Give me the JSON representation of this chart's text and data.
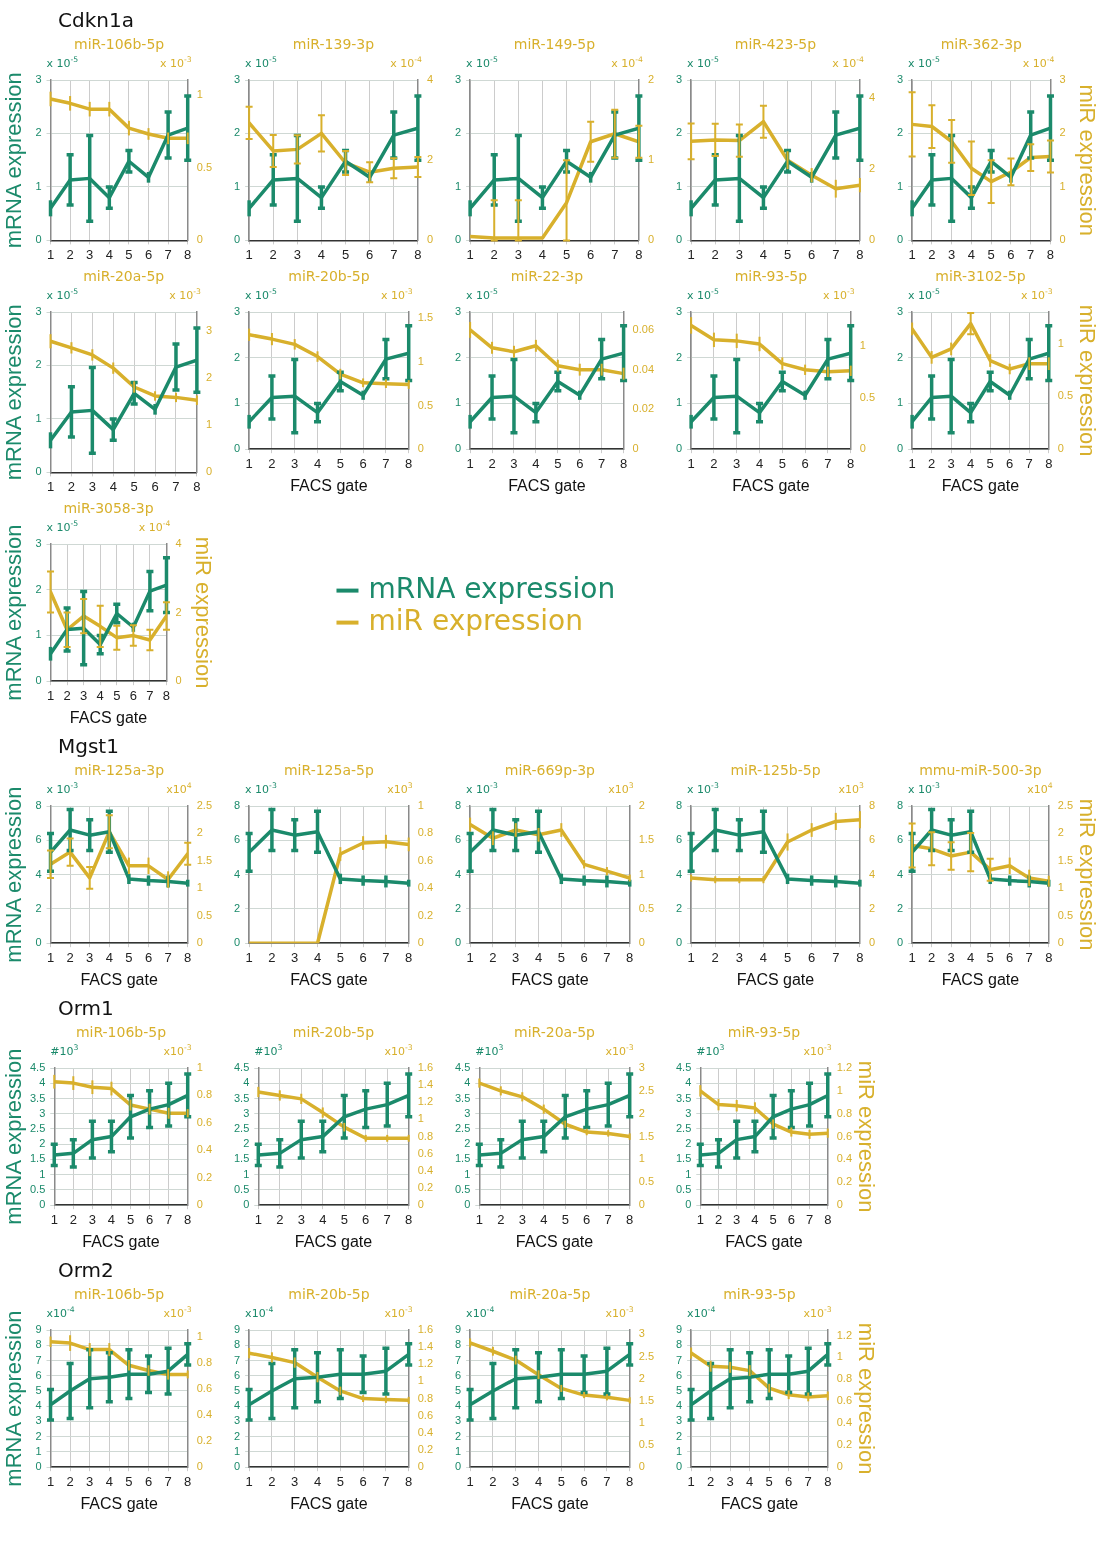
{
  "chart_data": [
    {
      "type": "other",
      "title": "Cdkn1a"
    },
    {
      "type": "line",
      "title": "miR-106b-5p",
      "ylabel": "mRNA expression",
      "annotations": [
        "x 10$^{-5}$",
        "x 10$^{-3}$"
      ],
      "x": [
        1,
        2,
        3,
        4,
        5,
        6,
        7,
        8
      ],
      "xlim": [
        1,
        8
      ],
      "xticks": [
        1,
        2,
        3,
        4,
        5,
        6,
        7,
        8
      ],
      "ylim": [
        0,
        3
      ],
      "yticks": [
        0,
        1,
        2,
        3
      ],
      "y2lim": [
        0,
        1.1
      ],
      "y2ticks": [
        0,
        0.5,
        1
      ],
      "grid": true,
      "series": [
        {
          "color": "#1b8a6b",
          "values": [
            0.6,
            1.13,
            1.16,
            0.8,
            1.48,
            1.18,
            1.97,
            2.1
          ],
          "errors": [
            0.15,
            0.47,
            0.8,
            0.2,
            0.2,
            0.1,
            0.43,
            0.6
          ]
        },
        {
          "color": "#d8b02c",
          "axis": "y2",
          "values": [
            0.97,
            0.94,
            0.9,
            0.9,
            0.77,
            0.73,
            0.7,
            0.7
          ],
          "errors": [
            0.05,
            0.05,
            0.05,
            0.05,
            0.05,
            0.04,
            0.04,
            0.04
          ]
        }
      ]
    },
    {
      "type": "line",
      "title": "miR-139-3p",
      "annotations": [
        "x 10$^{-5}$",
        "x 10$^{-4}$"
      ],
      "x": [
        1,
        2,
        3,
        4,
        5,
        6,
        7,
        8
      ],
      "xlim": [
        1,
        8
      ],
      "xticks": [
        1,
        2,
        3,
        4,
        5,
        6,
        7,
        8
      ],
      "ylim": [
        0,
        3
      ],
      "yticks": [
        0,
        1,
        2,
        3
      ],
      "y2lim": [
        0,
        4
      ],
      "y2ticks": [
        0,
        2,
        4
      ],
      "grid": true,
      "series": [
        {
          "color": "#1b8a6b",
          "values": [
            0.6,
            1.13,
            1.16,
            0.8,
            1.48,
            1.18,
            1.97,
            2.1
          ],
          "errors": [
            0.15,
            0.47,
            0.8,
            0.2,
            0.2,
            0.1,
            0.43,
            0.6
          ]
        },
        {
          "color": "#d8b02c",
          "axis": "y2",
          "values": [
            2.93,
            2.23,
            2.27,
            2.67,
            1.93,
            1.7,
            1.8,
            1.83
          ],
          "errors": [
            0.4,
            0.4,
            0.35,
            0.45,
            0.3,
            0.25,
            0.25,
            0.25
          ]
        }
      ]
    },
    {
      "type": "line",
      "title": "miR-149-5p",
      "annotations": [
        "x 10$^{-5}$",
        "x 10$^{-4}$"
      ],
      "x": [
        1,
        2,
        3,
        4,
        5,
        6,
        7,
        8
      ],
      "xlim": [
        1,
        8
      ],
      "xticks": [
        1,
        2,
        3,
        4,
        5,
        6,
        7,
        8
      ],
      "ylim": [
        0,
        3
      ],
      "yticks": [
        0,
        1,
        2,
        3
      ],
      "y2lim": [
        0,
        2
      ],
      "y2ticks": [
        0,
        1,
        2
      ],
      "grid": true,
      "series": [
        {
          "color": "#1b8a6b",
          "values": [
            0.6,
            1.13,
            1.16,
            0.8,
            1.48,
            1.18,
            1.97,
            2.1
          ],
          "errors": [
            0.15,
            0.47,
            0.8,
            0.2,
            0.2,
            0.1,
            0.43,
            0.6
          ]
        },
        {
          "color": "#d8b02c",
          "axis": "y2",
          "values": [
            0.05,
            0.03,
            0.03,
            0.03,
            0.47,
            1.23,
            1.33,
            1.23
          ],
          "errors": [
            null,
            [
              0,
              0.5
            ],
            [
              0,
              0.5
            ],
            null,
            [
              0,
              1.0
            ],
            0.25,
            0.3,
            0.2
          ]
        }
      ]
    },
    {
      "type": "line",
      "title": "miR-423-5p",
      "annotations": [
        "x 10$^{-5}$",
        "x 10$^{-4}$"
      ],
      "x": [
        1,
        2,
        3,
        4,
        5,
        6,
        7,
        8
      ],
      "xlim": [
        1,
        8
      ],
      "xticks": [
        1,
        2,
        3,
        4,
        5,
        6,
        7,
        8
      ],
      "ylim": [
        0,
        3
      ],
      "yticks": [
        0,
        1,
        2,
        3
      ],
      "y2lim": [
        0,
        4.5
      ],
      "y2ticks": [
        0,
        2,
        4
      ],
      "grid": true,
      "series": [
        {
          "color": "#1b8a6b",
          "values": [
            0.6,
            1.13,
            1.16,
            0.8,
            1.48,
            1.18,
            1.97,
            2.1
          ],
          "errors": [
            0.15,
            0.47,
            0.8,
            0.2,
            0.2,
            0.1,
            0.43,
            0.6
          ]
        },
        {
          "color": "#d8b02c",
          "axis": "y2",
          "values": [
            2.78,
            2.82,
            2.8,
            3.33,
            2.25,
            1.83,
            1.45,
            1.55
          ],
          "errors": [
            0.5,
            0.45,
            0.45,
            0.45,
            0.25,
            0.2,
            0.25,
            0.2
          ]
        }
      ]
    },
    {
      "type": "line",
      "title": "miR-362-3p",
      "y2label": "miR expression",
      "annotations": [
        "x 10$^{-5}$",
        "x 10$^{-4}$"
      ],
      "x": [
        1,
        2,
        3,
        4,
        5,
        6,
        7,
        8
      ],
      "xlim": [
        1,
        8
      ],
      "xticks": [
        1,
        2,
        3,
        4,
        5,
        6,
        7,
        8
      ],
      "ylim": [
        0,
        3
      ],
      "yticks": [
        0,
        1,
        2,
        3
      ],
      "y2lim": [
        0,
        3
      ],
      "y2ticks": [
        0,
        1,
        2,
        3
      ],
      "grid": true,
      "series": [
        {
          "color": "#1b8a6b",
          "values": [
            0.6,
            1.13,
            1.16,
            0.8,
            1.48,
            1.18,
            1.97,
            2.1
          ],
          "errors": [
            0.15,
            0.47,
            0.8,
            0.2,
            0.2,
            0.1,
            0.43,
            0.6
          ]
        },
        {
          "color": "#d8b02c",
          "axis": "y2",
          "values": [
            2.17,
            2.13,
            1.85,
            1.35,
            1.1,
            1.28,
            1.55,
            1.57
          ],
          "errors": [
            0.6,
            0.4,
            0.4,
            0.5,
            0.4,
            0.25,
            0.25,
            0.3
          ]
        }
      ]
    },
    {
      "type": "line",
      "title": "miR-20a-5p",
      "ylabel": "mRNA expression",
      "annotations": [
        "x 10$^{-5}$",
        "x 10$^{-3}$"
      ],
      "x": [
        1,
        2,
        3,
        4,
        5,
        6,
        7,
        8
      ],
      "xlim": [
        1,
        8
      ],
      "xticks": [
        1,
        2,
        3,
        4,
        5,
        6,
        7,
        8
      ],
      "ylim": [
        0,
        3
      ],
      "yticks": [
        0,
        1,
        2,
        3
      ],
      "y2lim": [
        0,
        3.4
      ],
      "y2ticks": [
        0,
        1,
        2,
        3
      ],
      "grid": true,
      "series": [
        {
          "color": "#1b8a6b",
          "values": [
            0.6,
            1.13,
            1.16,
            0.8,
            1.48,
            1.18,
            1.97,
            2.1
          ],
          "errors": [
            0.15,
            0.47,
            0.8,
            0.2,
            0.2,
            0.1,
            0.43,
            0.6
          ]
        },
        {
          "color": "#d8b02c",
          "axis": "y2",
          "values": [
            2.78,
            2.64,
            2.49,
            2.21,
            1.81,
            1.62,
            1.59,
            1.53
          ],
          "errors": [
            0.15,
            0.12,
            0.12,
            0.12,
            0.12,
            0.1,
            0.1,
            0.1
          ]
        }
      ]
    },
    {
      "type": "line",
      "title": "miR-20b-5p",
      "xlabel": "FACS gate",
      "annotations": [
        "x 10$^{-5}$",
        "x 10$^{-3}$"
      ],
      "x": [
        1,
        2,
        3,
        4,
        5,
        6,
        7,
        8
      ],
      "xlim": [
        1,
        8
      ],
      "xticks": [
        1,
        2,
        3,
        4,
        5,
        6,
        7,
        8
      ],
      "ylim": [
        0,
        3
      ],
      "yticks": [
        0,
        1,
        2,
        3
      ],
      "y2lim": [
        0,
        1.57
      ],
      "y2ticks": [
        0,
        0.5,
        1,
        1.5
      ],
      "grid": true,
      "series": [
        {
          "color": "#1b8a6b",
          "values": [
            0.6,
            1.13,
            1.16,
            0.8,
            1.48,
            1.18,
            1.97,
            2.1
          ],
          "errors": [
            0.15,
            0.47,
            0.8,
            0.2,
            0.2,
            0.1,
            0.43,
            0.6
          ]
        },
        {
          "color": "#d8b02c",
          "axis": "y2",
          "values": [
            1.31,
            1.26,
            1.2,
            1.06,
            0.86,
            0.76,
            0.75,
            0.74
          ],
          "errors": [
            0.07,
            0.07,
            0.06,
            0.06,
            0.06,
            0.05,
            0.05,
            0.05
          ]
        }
      ]
    },
    {
      "type": "line",
      "title": "miR-22-3p",
      "xlabel": "FACS gate",
      "annotations": [
        "x 10$^{-5}$"
      ],
      "x": [
        1,
        2,
        3,
        4,
        5,
        6,
        7,
        8
      ],
      "xlim": [
        1,
        8
      ],
      "xticks": [
        1,
        2,
        3,
        4,
        5,
        6,
        7,
        8
      ],
      "ylim": [
        0,
        3
      ],
      "yticks": [
        0,
        1,
        2,
        3
      ],
      "y2lim": [
        0,
        0.069
      ],
      "y2ticks": [
        0,
        0.02,
        0.04,
        0.06
      ],
      "grid": true,
      "series": [
        {
          "color": "#1b8a6b",
          "values": [
            0.6,
            1.13,
            1.16,
            0.8,
            1.48,
            1.18,
            1.97,
            2.1
          ],
          "errors": [
            0.15,
            0.47,
            0.8,
            0.2,
            0.2,
            0.1,
            0.43,
            0.6
          ]
        },
        {
          "color": "#d8b02c",
          "axis": "y2",
          "values": [
            0.06,
            0.051,
            0.049,
            0.052,
            0.042,
            0.04,
            0.04,
            0.038
          ],
          "errors": [
            0.004,
            0.003,
            0.003,
            0.003,
            0.003,
            0.003,
            0.003,
            0.003
          ]
        }
      ]
    },
    {
      "type": "line",
      "title": "miR-93-5p",
      "xlabel": "FACS gate",
      "annotations": [
        "x 10$^{-5}$",
        "x 10$^{-3}$"
      ],
      "x": [
        1,
        2,
        3,
        4,
        5,
        6,
        7,
        8
      ],
      "xlim": [
        1,
        8
      ],
      "xticks": [
        1,
        2,
        3,
        4,
        5,
        6,
        7,
        8
      ],
      "ylim": [
        0,
        3
      ],
      "yticks": [
        0,
        1,
        2,
        3
      ],
      "y2lim": [
        0,
        1.33
      ],
      "y2ticks": [
        0,
        0.5,
        1
      ],
      "grid": true,
      "series": [
        {
          "color": "#1b8a6b",
          "values": [
            0.6,
            1.13,
            1.16,
            0.8,
            1.48,
            1.18,
            1.97,
            2.1
          ],
          "errors": [
            0.15,
            0.47,
            0.8,
            0.2,
            0.2,
            0.1,
            0.43,
            0.6
          ]
        },
        {
          "color": "#d8b02c",
          "axis": "y2",
          "values": [
            1.2,
            1.06,
            1.05,
            1.02,
            0.83,
            0.77,
            0.75,
            0.76
          ],
          "errors": [
            0.08,
            0.07,
            0.07,
            0.07,
            0.06,
            0.05,
            0.05,
            0.05
          ]
        }
      ]
    },
    {
      "type": "line",
      "title": "miR-3102-5p",
      "xlabel": "FACS gate",
      "y2label": "miR expression",
      "annotations": [
        "x 10$^{-5}$",
        "x 10$^{-3}$"
      ],
      "x": [
        1,
        2,
        3,
        4,
        5,
        6,
        7,
        8
      ],
      "xlim": [
        1,
        8
      ],
      "xticks": [
        1,
        2,
        3,
        4,
        5,
        6,
        7,
        8
      ],
      "ylim": [
        0,
        3
      ],
      "yticks": [
        0,
        1,
        2,
        3
      ],
      "y2lim": [
        0,
        1.3
      ],
      "y2ticks": [
        0,
        0.5,
        1
      ],
      "grid": true,
      "series": [
        {
          "color": "#1b8a6b",
          "values": [
            0.6,
            1.13,
            1.16,
            0.8,
            1.48,
            1.18,
            1.97,
            2.1
          ],
          "errors": [
            0.15,
            0.47,
            0.8,
            0.2,
            0.2,
            0.1,
            0.43,
            0.6
          ]
        },
        {
          "color": "#d8b02c",
          "axis": "y2",
          "values": [
            1.14,
            0.87,
            0.95,
            1.19,
            0.84,
            0.76,
            0.81,
            0.81
          ],
          "errors": [
            0.06,
            0.06,
            0.06,
            0.1,
            0.06,
            0.05,
            0.06,
            0.06
          ]
        }
      ]
    },
    {
      "type": "line",
      "title": "miR-3058-3p",
      "xlabel": "FACS gate",
      "ylabel": "mRNA expression",
      "y2label": "miR expression",
      "legend": "right",
      "annotations": [
        "x 10$^{-5}$",
        "x 10$^{-4}$"
      ],
      "x": [
        1,
        2,
        3,
        4,
        5,
        6,
        7,
        8
      ],
      "xlim": [
        1,
        8
      ],
      "xticks": [
        1,
        2,
        3,
        4,
        5,
        6,
        7,
        8
      ],
      "ylim": [
        0,
        3
      ],
      "yticks": [
        0,
        1,
        2,
        3
      ],
      "y2lim": [
        0,
        4
      ],
      "y2ticks": [
        0,
        2,
        4
      ],
      "grid": true,
      "series": [
        {
          "name": "mRNA expression",
          "color": "#1b8a6b",
          "values": [
            0.6,
            1.13,
            1.16,
            0.8,
            1.48,
            1.18,
            1.97,
            2.1
          ],
          "errors": [
            0.15,
            0.47,
            0.8,
            0.2,
            0.2,
            0.1,
            0.43,
            0.6
          ]
        },
        {
          "name": "miR expression",
          "color": "#d8b02c",
          "axis": "y2",
          "values": [
            2.6,
            1.5,
            1.9,
            1.6,
            1.27,
            1.33,
            1.2,
            1.9
          ],
          "errors": [
            0.6,
            0.5,
            0.5,
            0.6,
            0.35,
            0.3,
            0.3,
            0.4
          ]
        }
      ]
    },
    {
      "type": "other",
      "title": "Mgst1"
    },
    {
      "type": "line",
      "title": "miR-125a-3p",
      "xlabel": "FACS gate",
      "ylabel": "mRNA expression",
      "annotations": [
        "x 10$^{-3}$",
        "x10$^{4}$"
      ],
      "x": [
        1,
        2,
        3,
        4,
        5,
        6,
        7,
        8
      ],
      "xlim": [
        1,
        8
      ],
      "xticks": [
        1,
        2,
        3,
        4,
        5,
        6,
        7,
        8
      ],
      "ylim": [
        0,
        8
      ],
      "yticks": [
        0,
        2,
        4,
        6,
        8
      ],
      "y2lim": [
        0,
        2.5
      ],
      "y2ticks": [
        0,
        0.5,
        1,
        1.5,
        2,
        2.5
      ],
      "grid": true,
      "series": [
        {
          "color": "#1b8a6b",
          "values": [
            5.3,
            6.6,
            6.3,
            6.5,
            3.75,
            3.65,
            3.6,
            3.5
          ],
          "errors": [
            1.1,
            1.2,
            0.9,
            1.2,
            0.3,
            0.3,
            0.35,
            0.2
          ]
        },
        {
          "color": "#d8b02c",
          "axis": "y2",
          "values": [
            1.44,
            1.66,
            1.19,
            2.03,
            1.41,
            1.41,
            1.16,
            1.63
          ],
          "errors": [
            0.25,
            0.25,
            0.2,
            0.3,
            0.15,
            0.15,
            0.15,
            0.2
          ]
        }
      ]
    },
    {
      "type": "line",
      "title": "miR-125a-5p",
      "xlabel": "FACS gate",
      "annotations": [
        "x 10$^{-3}$",
        "x10$^{3}$"
      ],
      "x": [
        1,
        2,
        3,
        4,
        5,
        6,
        7,
        8
      ],
      "xlim": [
        1,
        8
      ],
      "xticks": [
        1,
        2,
        3,
        4,
        5,
        6,
        7,
        8
      ],
      "ylim": [
        0,
        8
      ],
      "yticks": [
        0,
        2,
        4,
        6,
        8
      ],
      "y2lim": [
        0,
        1
      ],
      "y2ticks": [
        0,
        0.2,
        0.4,
        0.6,
        0.8,
        1
      ],
      "grid": true,
      "series": [
        {
          "color": "#1b8a6b",
          "values": [
            5.3,
            6.6,
            6.3,
            6.5,
            3.75,
            3.65,
            3.6,
            3.5
          ],
          "errors": [
            1.1,
            1.2,
            0.9,
            1.2,
            0.3,
            0.3,
            0.35,
            0.2
          ]
        },
        {
          "color": "#d8b02c",
          "axis": "y2",
          "values": [
            0,
            0,
            0,
            0,
            0.65,
            0.73,
            0.74,
            0.72
          ],
          "errors": [
            null,
            null,
            null,
            null,
            0.05,
            0.05,
            0.05,
            0.05
          ]
        }
      ]
    },
    {
      "type": "line",
      "title": "miR-669p-3p",
      "xlabel": "FACS gate",
      "annotations": [
        "x 10$^{-3}$",
        "x10$^{3}$"
      ],
      "x": [
        1,
        2,
        3,
        4,
        5,
        6,
        7,
        8
      ],
      "xlim": [
        1,
        8
      ],
      "xticks": [
        1,
        2,
        3,
        4,
        5,
        6,
        7,
        8
      ],
      "ylim": [
        0,
        8
      ],
      "yticks": [
        0,
        2,
        4,
        6,
        8
      ],
      "y2lim": [
        0,
        2
      ],
      "y2ticks": [
        0,
        0.5,
        1,
        1.5,
        2
      ],
      "grid": true,
      "series": [
        {
          "color": "#1b8a6b",
          "values": [
            5.3,
            6.6,
            6.3,
            6.5,
            3.75,
            3.65,
            3.6,
            3.5
          ],
          "errors": [
            1.1,
            1.2,
            0.9,
            1.2,
            0.3,
            0.3,
            0.35,
            0.2
          ]
        },
        {
          "color": "#d8b02c",
          "axis": "y2",
          "values": [
            1.73,
            1.53,
            1.65,
            1.58,
            1.65,
            1.15,
            1.05,
            0.95
          ],
          "errors": [
            0.1,
            0.1,
            0.1,
            0.1,
            0.1,
            0.06,
            0.06,
            0.05
          ]
        }
      ]
    },
    {
      "type": "line",
      "title": "miR-125b-5p",
      "xlabel": "FACS gate",
      "annotations": [
        "x 10$^{-3}$",
        "x10$^{3}$"
      ],
      "x": [
        1,
        2,
        3,
        4,
        5,
        6,
        7,
        8
      ],
      "xlim": [
        1,
        8
      ],
      "xticks": [
        1,
        2,
        3,
        4,
        5,
        6,
        7,
        8
      ],
      "ylim": [
        0,
        8
      ],
      "yticks": [
        0,
        2,
        4,
        6,
        8
      ],
      "y2lim": [
        0,
        8
      ],
      "y2ticks": [
        0,
        2,
        4,
        6,
        8
      ],
      "grid": true,
      "series": [
        {
          "color": "#1b8a6b",
          "values": [
            5.3,
            6.6,
            6.3,
            6.5,
            3.75,
            3.65,
            3.6,
            3.5
          ],
          "errors": [
            1.1,
            1.2,
            0.9,
            1.2,
            0.3,
            0.3,
            0.35,
            0.2
          ]
        },
        {
          "color": "#d8b02c",
          "axis": "y2",
          "values": [
            3.8,
            3.7,
            3.7,
            3.7,
            5.9,
            6.6,
            7.1,
            7.2
          ],
          "errors": [
            0.2,
            0.2,
            0.2,
            0.2,
            0.5,
            0.4,
            0.5,
            0.5
          ]
        }
      ]
    },
    {
      "type": "line",
      "title": "mmu-miR-500-3p",
      "xlabel": "FACS gate",
      "y2label": "miR expression",
      "annotations": [
        "x 10$^{-3}$",
        "x10$^{4}$"
      ],
      "x": [
        1,
        2,
        3,
        4,
        5,
        6,
        7,
        8
      ],
      "xlim": [
        1,
        8
      ],
      "xticks": [
        1,
        2,
        3,
        4,
        5,
        6,
        7,
        8
      ],
      "ylim": [
        0,
        8
      ],
      "yticks": [
        0,
        2,
        4,
        6,
        8
      ],
      "y2lim": [
        0,
        2.5
      ],
      "y2ticks": [
        0,
        0.5,
        1,
        1.5,
        2,
        2.5
      ],
      "grid": true,
      "series": [
        {
          "color": "#1b8a6b",
          "values": [
            5.3,
            6.6,
            6.3,
            6.5,
            3.75,
            3.65,
            3.6,
            3.5
          ],
          "errors": [
            1.1,
            1.2,
            0.9,
            1.2,
            0.3,
            0.3,
            0.35,
            0.2
          ]
        },
        {
          "color": "#d8b02c",
          "axis": "y2",
          "values": [
            1.78,
            1.72,
            1.59,
            1.66,
            1.34,
            1.41,
            1.19,
            1.13
          ],
          "errors": [
            0.4,
            0.3,
            0.25,
            0.35,
            0.2,
            0.15,
            0.15,
            0.1
          ]
        }
      ]
    },
    {
      "type": "other",
      "title": "Orm1"
    },
    {
      "type": "line",
      "title": "miR-106b-5p",
      "xlabel": "FACS gate",
      "ylabel": "mRNA expression",
      "annotations": [
        "#10$^{3}$",
        "x10$^{-3}$"
      ],
      "x": [
        1,
        2,
        3,
        4,
        5,
        6,
        7,
        8
      ],
      "xlim": [
        1,
        8
      ],
      "xticks": [
        1,
        2,
        3,
        4,
        5,
        6,
        7,
        8
      ],
      "ylim": [
        0,
        4.5
      ],
      "yticks": [
        0,
        0.5,
        1,
        1.5,
        2,
        2.5,
        3,
        3.5,
        4,
        4.5
      ],
      "y2lim": [
        0,
        1
      ],
      "y2ticks": [
        0,
        0.2,
        0.4,
        0.6,
        0.8,
        1
      ],
      "grid": true,
      "series": [
        {
          "color": "#1b8a6b",
          "values": [
            1.65,
            1.7,
            2.15,
            2.25,
            2.9,
            3.15,
            3.3,
            3.6
          ],
          "errors": [
            0.35,
            0.45,
            0.6,
            0.5,
            0.7,
            0.6,
            0.7,
            0.7
          ]
        },
        {
          "color": "#d8b02c",
          "axis": "y2",
          "values": [
            0.9,
            0.89,
            0.86,
            0.85,
            0.73,
            0.7,
            0.67,
            0.67
          ],
          "errors": [
            0.05,
            0.05,
            0.05,
            0.05,
            0.04,
            0.04,
            0.04,
            0.03
          ]
        }
      ]
    },
    {
      "type": "line",
      "title": "miR-20b-5p",
      "xlabel": "FACS gate",
      "annotations": [
        "#10$^{3}$",
        "x10$^{-3}$"
      ],
      "x": [
        1,
        2,
        3,
        4,
        5,
        6,
        7,
        8
      ],
      "xlim": [
        1,
        8
      ],
      "xticks": [
        1,
        2,
        3,
        4,
        5,
        6,
        7,
        8
      ],
      "ylim": [
        0,
        4.5
      ],
      "yticks": [
        0,
        0.5,
        1,
        1.5,
        2,
        2.5,
        3,
        3.5,
        4,
        4.5
      ],
      "y2lim": [
        0,
        1.6
      ],
      "y2ticks": [
        0,
        0.2,
        0.4,
        0.6,
        0.8,
        1,
        1.2,
        1.4,
        1.6
      ],
      "grid": true,
      "series": [
        {
          "color": "#1b8a6b",
          "values": [
            1.65,
            1.7,
            2.15,
            2.25,
            2.9,
            3.15,
            3.3,
            3.6
          ],
          "errors": [
            0.35,
            0.45,
            0.6,
            0.5,
            0.7,
            0.6,
            0.7,
            0.7
          ]
        },
        {
          "color": "#d8b02c",
          "axis": "y2",
          "values": [
            1.32,
            1.28,
            1.24,
            1.08,
            0.91,
            0.78,
            0.78,
            0.78
          ],
          "errors": [
            0.06,
            0.06,
            0.06,
            0.06,
            0.05,
            0.04,
            0.04,
            0.04
          ]
        }
      ]
    },
    {
      "type": "line",
      "title": "miR-20a-5p",
      "xlabel": "FACS gate",
      "annotations": [
        "#10$^{3}$",
        "x10$^{-3}$"
      ],
      "x": [
        1,
        2,
        3,
        4,
        5,
        6,
        7,
        8
      ],
      "xlim": [
        1,
        8
      ],
      "xticks": [
        1,
        2,
        3,
        4,
        5,
        6,
        7,
        8
      ],
      "ylim": [
        0,
        4.5
      ],
      "yticks": [
        0,
        0.5,
        1,
        1.5,
        2,
        2.5,
        3,
        3.5,
        4,
        4.5
      ],
      "y2lim": [
        0,
        3
      ],
      "y2ticks": [
        0,
        0.5,
        1,
        1.5,
        2,
        2.5,
        3
      ],
      "grid": true,
      "series": [
        {
          "color": "#1b8a6b",
          "values": [
            1.65,
            1.7,
            2.15,
            2.25,
            2.9,
            3.15,
            3.3,
            3.6
          ],
          "errors": [
            0.35,
            0.45,
            0.6,
            0.5,
            0.7,
            0.6,
            0.7,
            0.7
          ]
        },
        {
          "color": "#d8b02c",
          "axis": "y2",
          "values": [
            2.67,
            2.5,
            2.37,
            2.1,
            1.77,
            1.6,
            1.57,
            1.5
          ],
          "errors": [
            0.1,
            0.1,
            0.1,
            0.1,
            0.08,
            0.07,
            0.07,
            0.07
          ]
        }
      ]
    },
    {
      "type": "line",
      "title": "miR-93-5p",
      "xlabel": "FACS gate",
      "y2label": "miR expression",
      "annotations": [
        "#10$^{3}$",
        "x10$^{-3}$"
      ],
      "x": [
        1,
        2,
        3,
        4,
        5,
        6,
        7,
        8
      ],
      "xlim": [
        1,
        8
      ],
      "xticks": [
        1,
        2,
        3,
        4,
        5,
        6,
        7,
        8
      ],
      "ylim": [
        0,
        4.5
      ],
      "yticks": [
        0,
        0.5,
        1,
        1.5,
        2,
        2.5,
        3,
        3.5,
        4,
        4.5
      ],
      "y2lim": [
        0,
        1.2
      ],
      "y2ticks": [
        0,
        0.2,
        0.4,
        0.6,
        0.8,
        1,
        1.2
      ],
      "grid": true,
      "series": [
        {
          "color": "#1b8a6b",
          "values": [
            1.65,
            1.7,
            2.15,
            2.25,
            2.9,
            3.15,
            3.3,
            3.6
          ],
          "errors": [
            0.35,
            0.45,
            0.6,
            0.5,
            0.7,
            0.6,
            0.7,
            0.7
          ]
        },
        {
          "color": "#d8b02c",
          "axis": "y2",
          "values": [
            1.0,
            0.88,
            0.87,
            0.85,
            0.71,
            0.64,
            0.62,
            0.63
          ],
          "errors": [
            0.05,
            0.05,
            0.05,
            0.05,
            0.04,
            0.04,
            0.04,
            0.04
          ]
        }
      ]
    },
    {
      "type": "other",
      "title": "Orm2"
    },
    {
      "type": "line",
      "title": "miR-106b-5p",
      "xlabel": "FACS gate",
      "ylabel": "mRNA expression",
      "annotations": [
        "x10$^{-4}$",
        "x10$^{-3}$"
      ],
      "x": [
        1,
        2,
        3,
        4,
        5,
        6,
        7,
        8
      ],
      "xlim": [
        1,
        8
      ],
      "xticks": [
        1,
        2,
        3,
        4,
        5,
        6,
        7,
        8
      ],
      "ylim": [
        0,
        9
      ],
      "yticks": [
        0,
        1,
        2,
        3,
        4,
        5,
        6,
        7,
        8,
        9
      ],
      "y2lim": [
        0,
        1.05
      ],
      "y2ticks": [
        0,
        0.2,
        0.4,
        0.6,
        0.8,
        1
      ],
      "grid": true,
      "series": [
        {
          "color": "#1b8a6b",
          "values": [
            4.1,
            5.0,
            5.8,
            5.9,
            6.1,
            6.1,
            6.3,
            7.4
          ],
          "errors": [
            1.0,
            1.8,
            1.9,
            1.6,
            1.6,
            1.2,
            1.5,
            0.7
          ]
        },
        {
          "color": "#d8b02c",
          "axis": "y2",
          "values": [
            0.96,
            0.95,
            0.9,
            0.9,
            0.78,
            0.74,
            0.71,
            0.71
          ],
          "errors": [
            0.04,
            0.06,
            0.05,
            0.05,
            0.04,
            0.04,
            0.04,
            0.03
          ]
        }
      ]
    },
    {
      "type": "line",
      "title": "miR-20b-5p",
      "xlabel": "FACS gate",
      "annotations": [
        "x10$^{-4}$",
        "x10$^{-3}$"
      ],
      "x": [
        1,
        2,
        3,
        4,
        5,
        6,
        7,
        8
      ],
      "xlim": [
        1,
        8
      ],
      "xticks": [
        1,
        2,
        3,
        4,
        5,
        6,
        7,
        8
      ],
      "ylim": [
        0,
        9
      ],
      "yticks": [
        0,
        1,
        2,
        3,
        4,
        5,
        6,
        7,
        8,
        9
      ],
      "y2lim": [
        0,
        1.6
      ],
      "y2ticks": [
        0,
        0.2,
        0.4,
        0.6,
        0.8,
        1,
        1.2,
        1.4,
        1.6
      ],
      "grid": true,
      "series": [
        {
          "color": "#1b8a6b",
          "values": [
            4.1,
            5.0,
            5.8,
            5.9,
            6.1,
            6.1,
            6.3,
            7.4
          ],
          "errors": [
            1.0,
            1.8,
            1.9,
            1.6,
            1.6,
            1.2,
            1.5,
            0.7
          ]
        },
        {
          "color": "#d8b02c",
          "axis": "y2",
          "values": [
            1.33,
            1.28,
            1.22,
            1.05,
            0.89,
            0.8,
            0.79,
            0.78
          ],
          "errors": [
            0.06,
            0.06,
            0.06,
            0.06,
            0.05,
            0.04,
            0.04,
            0.04
          ]
        }
      ]
    },
    {
      "type": "line",
      "title": "miR-20a-5p",
      "xlabel": "FACS gate",
      "annotations": [
        "x10$^{-4}$",
        "x10$^{-3}$"
      ],
      "x": [
        1,
        2,
        3,
        4,
        5,
        6,
        7,
        8
      ],
      "xlim": [
        1,
        8
      ],
      "xticks": [
        1,
        2,
        3,
        4,
        5,
        6,
        7,
        8
      ],
      "ylim": [
        0,
        9
      ],
      "yticks": [
        0,
        1,
        2,
        3,
        4,
        5,
        6,
        7,
        8,
        9
      ],
      "y2lim": [
        0,
        3.1
      ],
      "y2ticks": [
        0,
        0.5,
        1,
        1.5,
        2,
        2.5,
        3
      ],
      "grid": true,
      "series": [
        {
          "color": "#1b8a6b",
          "values": [
            4.1,
            5.0,
            5.8,
            5.9,
            6.1,
            6.1,
            6.3,
            7.4
          ],
          "errors": [
            1.0,
            1.8,
            1.9,
            1.6,
            1.6,
            1.2,
            1.5,
            0.7
          ]
        },
        {
          "color": "#d8b02c",
          "axis": "y2",
          "values": [
            2.81,
            2.62,
            2.42,
            2.09,
            1.78,
            1.63,
            1.58,
            1.51
          ],
          "errors": [
            0.1,
            0.1,
            0.1,
            0.1,
            0.08,
            0.07,
            0.07,
            0.07
          ]
        }
      ]
    },
    {
      "type": "line",
      "title": "miR-93-5p",
      "xlabel": "FACS gate",
      "y2label": "miR expression",
      "annotations": [
        "x10$^{-4}$",
        "x10$^{-3}$"
      ],
      "x": [
        1,
        2,
        3,
        4,
        5,
        6,
        7,
        8
      ],
      "xlim": [
        1,
        8
      ],
      "xticks": [
        1,
        2,
        3,
        4,
        5,
        6,
        7,
        8
      ],
      "ylim": [
        0,
        9
      ],
      "yticks": [
        0,
        1,
        2,
        3,
        4,
        5,
        6,
        7,
        8,
        9
      ],
      "y2lim": [
        0,
        1.25
      ],
      "y2ticks": [
        0,
        0.2,
        0.4,
        0.6,
        0.8,
        1,
        1.2
      ],
      "grid": true,
      "series": [
        {
          "color": "#1b8a6b",
          "values": [
            4.1,
            5.0,
            5.8,
            5.9,
            6.1,
            6.1,
            6.3,
            7.4
          ],
          "errors": [
            1.0,
            1.8,
            1.9,
            1.6,
            1.6,
            1.2,
            1.5,
            0.7
          ]
        },
        {
          "color": "#d8b02c",
          "axis": "y2",
          "values": [
            1.04,
            0.92,
            0.91,
            0.88,
            0.72,
            0.66,
            0.64,
            0.65
          ],
          "errors": [
            0.05,
            0.05,
            0.05,
            0.05,
            0.04,
            0.04,
            0.04,
            0.04
          ]
        }
      ]
    }
  ]
}
